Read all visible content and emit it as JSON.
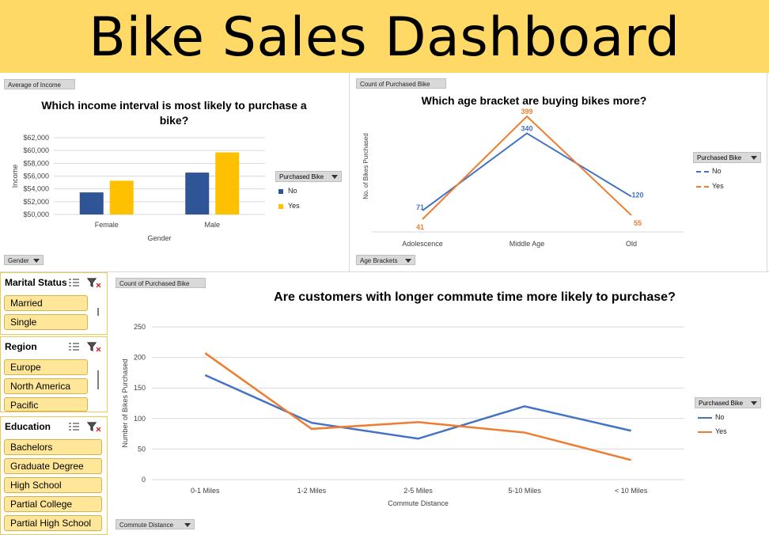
{
  "header": {
    "title": "Bike Sales Dashboard"
  },
  "colors": {
    "no": "#2f5597",
    "yes": "#ffc000",
    "orange": "#ed7d31",
    "blue": "#4472c4",
    "banner": "#ffd966"
  },
  "income_chart": {
    "field_button": "Average of Income",
    "axis_button": "Gender",
    "title": "Which income interval is most likely to purchase a bike?",
    "legend_title": "Purchased Bike",
    "legend_no": "No",
    "legend_yes": "Yes",
    "xlabel": "Gender",
    "ylabel": "Income",
    "yticks": [
      "$62,000",
      "$60,000",
      "$58,000",
      "$56,000",
      "$54,000",
      "$52,000",
      "$50,000"
    ],
    "categories": [
      "Female",
      "Male"
    ]
  },
  "age_chart": {
    "field_button": "Count of Purchased Bike",
    "axis_button": "Age Brackets",
    "title": "Which age bracket are buying bikes more?",
    "ylabel": "No. of Bikes Purchased",
    "legend_title": "Purchased Bike",
    "legend_no": "No",
    "legend_yes": "Yes",
    "categories": [
      "Adolescence",
      "Middle Age",
      "Old"
    ],
    "labels_no": [
      "71",
      "340",
      "120"
    ],
    "labels_yes": [
      "41",
      "399",
      "55"
    ]
  },
  "commute_chart": {
    "field_button": "Count of Purchased Bike",
    "axis_button": "Commute Distance",
    "title": "Are customers with longer commute time more likely to purchase?",
    "ylabel": "Number of Bikes Purchased",
    "xlabel": "Commute Distance",
    "legend_title": "Purchased Bike",
    "legend_no": "No",
    "legend_yes": "Yes",
    "yticks": [
      "250",
      "200",
      "150",
      "100",
      "50",
      "0"
    ],
    "categories": [
      "0-1 Miles",
      "1-2 Miles",
      "2-5 Miles",
      "5-10 Miles",
      "< 10 Miles"
    ]
  },
  "slicers": {
    "marital": {
      "title": "Marital Status",
      "items": [
        "Married",
        "Single"
      ]
    },
    "region": {
      "title": "Region",
      "items": [
        "Europe",
        "North America",
        "Pacific"
      ]
    },
    "education": {
      "title": "Education",
      "items": [
        "Bachelors",
        "Graduate Degree",
        "High School",
        "Partial College",
        "Partial High School"
      ]
    }
  },
  "chart_data": [
    {
      "type": "bar",
      "title": "Which income interval is most likely to purchase a bike?",
      "xlabel": "Gender",
      "ylabel": "Income",
      "categories": [
        "Female",
        "Male"
      ],
      "series": [
        {
          "name": "No",
          "values": [
            53450,
            56550
          ]
        },
        {
          "name": "Yes",
          "values": [
            55270,
            59700
          ]
        }
      ],
      "ylim": [
        50000,
        62000
      ],
      "legend": "right"
    },
    {
      "type": "line",
      "title": "Which age bracket are buying bikes more?",
      "ylabel": "No. of Bikes Purchased",
      "categories": [
        "Adolescence",
        "Middle Age",
        "Old"
      ],
      "series": [
        {
          "name": "No",
          "values": [
            71,
            340,
            120
          ]
        },
        {
          "name": "Yes",
          "values": [
            41,
            399,
            55
          ]
        }
      ],
      "legend": "right"
    },
    {
      "type": "line",
      "title": "Are customers with longer commute time more likely to purchase?",
      "xlabel": "Commute Distance",
      "ylabel": "Number of Bikes Purchased",
      "categories": [
        "0-1 Miles",
        "1-2 Miles",
        "2-5 Miles",
        "5-10 Miles",
        "< 10 Miles"
      ],
      "series": [
        {
          "name": "No",
          "values": [
            171,
            93,
            67,
            120,
            80
          ]
        },
        {
          "name": "Yes",
          "values": [
            207,
            83,
            94,
            77,
            32
          ]
        }
      ],
      "ylim": [
        0,
        250
      ],
      "legend": "right"
    }
  ]
}
